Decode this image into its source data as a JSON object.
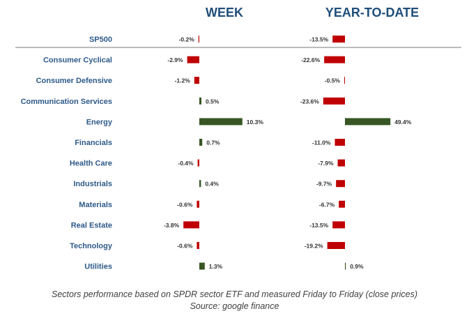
{
  "chart_data": {
    "type": "bar",
    "orientation": "horizontal",
    "categories": [
      "SP500",
      "Consumer Cyclical",
      "Consumer Defensive",
      "Communication Services",
      "Energy",
      "Financials",
      "Health Care",
      "Industrials",
      "Materials",
      "Real Estate",
      "Technology",
      "Utilities"
    ],
    "series": [
      {
        "name": "WEEK",
        "values": [
          -0.2,
          -2.9,
          -1.2,
          0.5,
          10.3,
          0.7,
          -0.4,
          0.4,
          -0.6,
          -3.8,
          -0.6,
          1.3
        ],
        "labels": [
          "-0.2%",
          "-2.9%",
          "-1.2%",
          "0.5%",
          "10.3%",
          "0.7%",
          "-0.4%",
          "0.4%",
          "-0.6%",
          "-3.8%",
          "-0.6%",
          "1.3%"
        ]
      },
      {
        "name": "YEAR-TO-DATE",
        "values": [
          -13.5,
          -22.6,
          -0.5,
          -23.6,
          49.4,
          -11.0,
          -7.9,
          -9.7,
          -6.7,
          -13.5,
          -19.2,
          0.9
        ],
        "labels": [
          "-13.5%",
          "-22.6%",
          "-0.5%",
          "-23.6%",
          "49.4%",
          "-11.0%",
          "-7.9%",
          "-9.7%",
          "-6.7%",
          "-13.5%",
          "-19.2%",
          "0.9%"
        ]
      }
    ],
    "colors": {
      "positive": "#375623",
      "negative": "#c00000",
      "title": "#1f4e79",
      "category": "#2e5a88",
      "separator": "#a6a6a6"
    },
    "grid": false,
    "legend": "none"
  },
  "caption": {
    "line1": "Sectors performance based on SPDR sector ETF and measured Friday to Friday (close prices)",
    "line2": "Source: google finance"
  }
}
